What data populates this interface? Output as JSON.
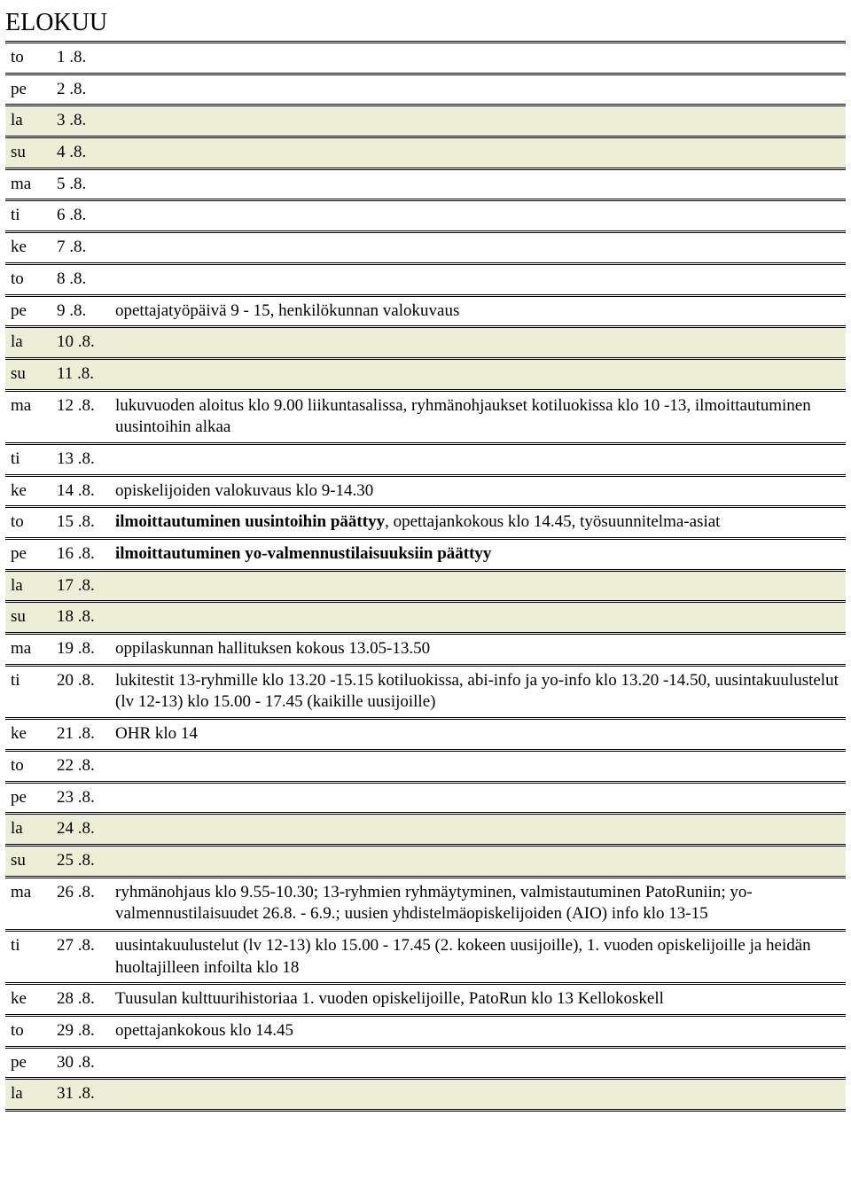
{
  "title": "ELOKUU",
  "highlight_bg": "#eceed5",
  "rows": [
    {
      "day": "to",
      "date": "1 .8.",
      "event": "",
      "highlight": false
    },
    {
      "day": "pe",
      "date": "2 .8.",
      "event": "",
      "highlight": false
    },
    {
      "day": "la",
      "date": "3 .8.",
      "event": "",
      "highlight": true
    },
    {
      "day": "su",
      "date": "4 .8.",
      "event": "",
      "highlight": true
    },
    {
      "day": "ma",
      "date": "5 .8.",
      "event": "",
      "highlight": false
    },
    {
      "day": "ti",
      "date": "6 .8.",
      "event": "",
      "highlight": false
    },
    {
      "day": "ke",
      "date": "7 .8.",
      "event": "",
      "highlight": false
    },
    {
      "day": "to",
      "date": "8 .8.",
      "event": "",
      "highlight": false
    },
    {
      "day": "pe",
      "date": "9 .8.",
      "event": "opettajatyöpäivä 9 - 15, henkilökunnan valokuvaus",
      "highlight": false
    },
    {
      "day": "la",
      "date": "10 .8.",
      "event": "",
      "highlight": true
    },
    {
      "day": "su",
      "date": "11 .8.",
      "event": "",
      "highlight": true
    },
    {
      "day": "ma",
      "date": "12 .8.",
      "event": "lukuvuoden aloitus klo 9.00 liikuntasalissa, ryhmänohjaukset kotiluokissa klo 10 -13, ilmoittautuminen uusintoihin alkaa",
      "highlight": false
    },
    {
      "day": "ti",
      "date": "13 .8.",
      "event": "",
      "highlight": false
    },
    {
      "day": "ke",
      "date": "14 .8.",
      "event": "opiskelijoiden valokuvaus klo 9-14.30",
      "highlight": false
    },
    {
      "day": "to",
      "date": "15 .8.",
      "event_html": "<span class=\"bold\">ilmoittautuminen uusintoihin päättyy</span>, opettajankokous klo 14.45, työsuunnitelma-asiat",
      "highlight": false
    },
    {
      "day": "pe",
      "date": "16 .8.",
      "event_html": "<span class=\"bold\">ilmoittautuminen yo-valmennustilaisuuksiin päättyy</span>",
      "highlight": false
    },
    {
      "day": "la",
      "date": "17 .8.",
      "event": "",
      "highlight": true
    },
    {
      "day": "su",
      "date": "18 .8.",
      "event": "",
      "highlight": true
    },
    {
      "day": "ma",
      "date": "19 .8.",
      "event": "oppilaskunnan hallituksen kokous 13.05-13.50",
      "highlight": false
    },
    {
      "day": "ti",
      "date": "20 .8.",
      "event": "lukitestit 13-ryhmille klo 13.20 -15.15 kotiluokissa, abi-info ja yo-info klo 13.20 -14.50,  uusintakuulustelut (lv 12-13) klo 15.00 - 17.45 (kaikille uusijoille)",
      "highlight": false
    },
    {
      "day": "ke",
      "date": "21 .8.",
      "event": "OHR klo 14",
      "highlight": false
    },
    {
      "day": "to",
      "date": "22 .8.",
      "event": "",
      "highlight": false
    },
    {
      "day": "pe",
      "date": "23 .8.",
      "event": "",
      "highlight": false
    },
    {
      "day": "la",
      "date": "24 .8.",
      "event": "",
      "highlight": true
    },
    {
      "day": "su",
      "date": "25 .8.",
      "event": "",
      "highlight": true
    },
    {
      "day": "ma",
      "date": "26 .8.",
      "event": "ryhmänohjaus klo 9.55-10.30; 13-ryhmien ryhmäytyminen, valmistautuminen PatoRuniin; yo-valmennustilaisuudet 26.8. - 6.9.; uusien yhdistelmäopiskelijoiden (AIO) info klo 13-15",
      "highlight": false
    },
    {
      "day": "ti",
      "date": "27 .8.",
      "event": "uusintakuulustelut (lv 12-13) klo 15.00 - 17.45 (2. kokeen uusijoille), 1. vuoden opiskelijoille ja heidän huoltajilleen infoilta klo 18",
      "highlight": false
    },
    {
      "day": "ke",
      "date": "28 .8.",
      "event": "Tuusulan kulttuurihistoriaa 1. vuoden opiskelijoille, PatoRun klo 13 Kellokoskell",
      "highlight": false
    },
    {
      "day": "to",
      "date": "29 .8.",
      "event": "opettajankokous klo 14.45",
      "highlight": false
    },
    {
      "day": "pe",
      "date": "30 .8.",
      "event": "",
      "highlight": false
    },
    {
      "day": "la",
      "date": "31 .8.",
      "event": "",
      "highlight": true
    }
  ]
}
